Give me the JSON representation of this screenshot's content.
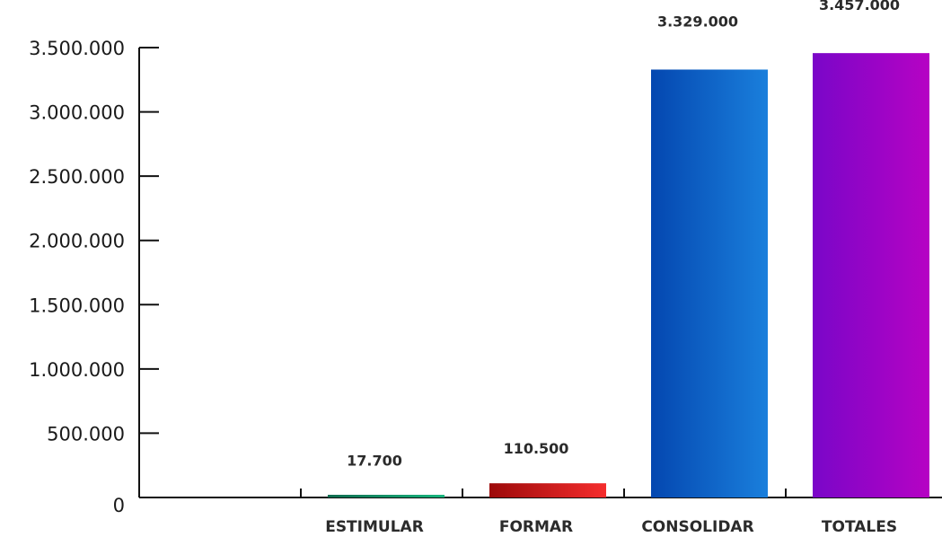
{
  "chart_data": {
    "type": "bar",
    "title": "",
    "xlabel": "",
    "ylabel": "",
    "ylim": [
      0,
      3500000
    ],
    "yticks": [
      0,
      500000,
      1000000,
      1500000,
      2000000,
      2500000,
      3000000,
      3500000
    ],
    "ytick_labels": [
      "0",
      "500.000",
      "1.000.000",
      "1.500.000",
      "2.000.000",
      "2.500.000",
      "3.000.000",
      "3.500.000"
    ],
    "categories": [
      "",
      "ESTIMULAR",
      "FORMAR",
      "CONSOLIDAR",
      "TOTALES"
    ],
    "values": [
      0,
      17700,
      110500,
      3329000,
      3457000
    ],
    "data_labels": [
      "",
      "17.700",
      "110.500",
      "3.329.000",
      "3.457.000"
    ],
    "bar_gradients": [
      [
        "#ffffff",
        "#ffffff"
      ],
      [
        "#0f6b4f",
        "#17b57d"
      ],
      [
        "#9c0a0a",
        "#f52d2d"
      ],
      [
        "#0447b0",
        "#1a7fdc"
      ],
      [
        "#7a06c8",
        "#b603c4"
      ]
    ],
    "grid": false,
    "legend": "none"
  }
}
